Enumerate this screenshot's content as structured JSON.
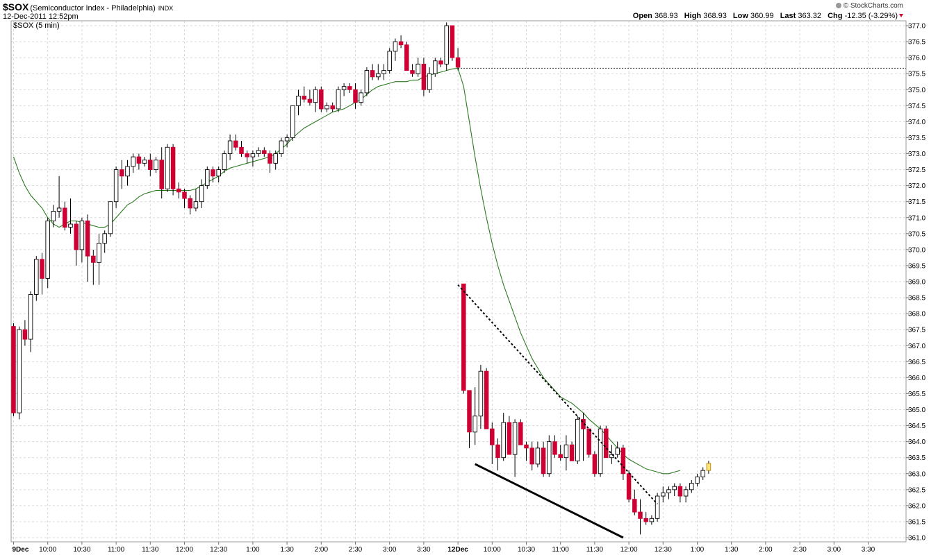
{
  "header": {
    "symbol": "$SOX",
    "description": "(Semiconductor Index - Philadelphia)",
    "exchange": "INDX",
    "datetime": "12-Dec-2011 12:52pm",
    "brand": "© StockCharts.com",
    "open_label": "Open",
    "open": "368.93",
    "high_label": "High",
    "high": "368.93",
    "low_label": "Low",
    "low": "360.99",
    "last_label": "Last",
    "last": "363.32",
    "chg_label": "Chg",
    "chg": "-12.35 (-3.29%)"
  },
  "colors": {
    "up": "#ffffff",
    "down": "#cc0033",
    "ma": "#2a7a1f",
    "grid": "#d9d9d9",
    "last_bar": "#ffe27a"
  },
  "chart_data": {
    "type": "candlestick",
    "series_label": "$SOX (5 min)",
    "ylim": [
      361.0,
      377.0
    ],
    "y_ticks": [
      "377.0",
      "376.5",
      "376.0",
      "375.5",
      "375.0",
      "374.5",
      "374.0",
      "373.5",
      "373.0",
      "372.5",
      "372.0",
      "371.5",
      "371.0",
      "370.5",
      "370.0",
      "369.5",
      "369.0",
      "368.5",
      "368.0",
      "367.5",
      "367.0",
      "366.5",
      "366.0",
      "365.5",
      "365.0",
      "364.5",
      "364.0",
      "363.5",
      "363.0",
      "362.5",
      "362.0",
      "361.5",
      "361.0"
    ],
    "x_labels": [
      {
        "bar": 0,
        "text": "9Dec",
        "bold": true
      },
      {
        "bar": 6,
        "text": "10:00"
      },
      {
        "bar": 12,
        "text": "10:30"
      },
      {
        "bar": 18,
        "text": "11:00"
      },
      {
        "bar": 24,
        "text": "11:30"
      },
      {
        "bar": 30,
        "text": "12:00"
      },
      {
        "bar": 36,
        "text": "12:30"
      },
      {
        "bar": 42,
        "text": "1:00"
      },
      {
        "bar": 48,
        "text": "1:30"
      },
      {
        "bar": 54,
        "text": "2:00"
      },
      {
        "bar": 60,
        "text": "2:30"
      },
      {
        "bar": 66,
        "text": "3:00"
      },
      {
        "bar": 72,
        "text": "3:30"
      },
      {
        "bar": 78,
        "text": "12Dec",
        "bold": true
      },
      {
        "bar": 84,
        "text": "10:00"
      },
      {
        "bar": 90,
        "text": "10:30"
      },
      {
        "bar": 96,
        "text": "11:00"
      },
      {
        "bar": 102,
        "text": "11:30"
      },
      {
        "bar": 108,
        "text": "12:00"
      },
      {
        "bar": 114,
        "text": "12:30"
      },
      {
        "bar": 120,
        "text": "1:00"
      },
      {
        "bar": 126,
        "text": "1:30"
      },
      {
        "bar": 132,
        "text": "2:00"
      },
      {
        "bar": 138,
        "text": "2:30"
      },
      {
        "bar": 144,
        "text": "3:00"
      },
      {
        "bar": 150,
        "text": "3:30"
      }
    ],
    "candles": [
      [
        367.6,
        367.7,
        364.8,
        364.9
      ],
      [
        364.9,
        367.6,
        364.7,
        367.5
      ],
      [
        367.5,
        367.8,
        367.0,
        367.2
      ],
      [
        367.2,
        368.7,
        366.8,
        368.6
      ],
      [
        368.6,
        369.8,
        368.4,
        369.7
      ],
      [
        369.7,
        369.9,
        368.6,
        369.1
      ],
      [
        369.1,
        371.0,
        368.8,
        370.9
      ],
      [
        370.9,
        371.4,
        370.7,
        371.2
      ],
      [
        371.2,
        372.3,
        371.0,
        371.3
      ],
      [
        371.3,
        371.5,
        370.6,
        370.7
      ],
      [
        370.7,
        371.6,
        370.5,
        370.8
      ],
      [
        370.8,
        370.9,
        369.5,
        370.0
      ],
      [
        370.0,
        371.0,
        369.6,
        370.9
      ],
      [
        370.9,
        371.1,
        369.0,
        369.8
      ],
      [
        369.8,
        370.0,
        368.9,
        369.6
      ],
      [
        369.6,
        370.5,
        368.9,
        370.2
      ],
      [
        370.2,
        370.6,
        369.9,
        370.5
      ],
      [
        370.5,
        371.5,
        370.4,
        371.5
      ],
      [
        371.5,
        372.6,
        371.3,
        372.5
      ],
      [
        372.5,
        372.8,
        371.9,
        372.3
      ],
      [
        372.3,
        372.8,
        372.0,
        372.6
      ],
      [
        372.6,
        373.0,
        372.4,
        372.9
      ],
      [
        372.9,
        373.0,
        372.5,
        372.7
      ],
      [
        372.7,
        372.9,
        372.6,
        372.8
      ],
      [
        372.8,
        373.0,
        372.3,
        372.5
      ],
      [
        372.5,
        372.9,
        372.4,
        372.8
      ],
      [
        372.8,
        373.2,
        371.6,
        371.9
      ],
      [
        371.9,
        373.3,
        371.8,
        373.2
      ],
      [
        373.2,
        373.3,
        371.7,
        371.9
      ],
      [
        371.9,
        372.1,
        371.6,
        371.8
      ],
      [
        371.8,
        371.9,
        371.3,
        371.6
      ],
      [
        371.6,
        371.7,
        371.1,
        371.3
      ],
      [
        371.3,
        371.9,
        371.2,
        371.5
      ],
      [
        371.5,
        372.2,
        371.3,
        372.0
      ],
      [
        372.0,
        372.6,
        371.9,
        372.5
      ],
      [
        372.5,
        372.6,
        372.1,
        372.3
      ],
      [
        372.3,
        372.6,
        372.1,
        372.5
      ],
      [
        372.5,
        373.1,
        372.4,
        373.0
      ],
      [
        373.0,
        373.6,
        372.8,
        373.4
      ],
      [
        373.4,
        373.6,
        373.1,
        373.2
      ],
      [
        373.2,
        373.4,
        372.9,
        373.0
      ],
      [
        373.0,
        373.1,
        372.7,
        372.9
      ],
      [
        372.9,
        373.1,
        372.6,
        373.0
      ],
      [
        373.0,
        373.2,
        372.9,
        373.1
      ],
      [
        373.1,
        373.2,
        372.9,
        373.0
      ],
      [
        373.0,
        373.1,
        372.4,
        372.7
      ],
      [
        372.7,
        373.1,
        372.5,
        373.0
      ],
      [
        373.0,
        373.5,
        372.9,
        373.4
      ],
      [
        373.4,
        373.6,
        373.2,
        373.5
      ],
      [
        373.5,
        374.5,
        373.4,
        374.5
      ],
      [
        374.5,
        375.0,
        374.2,
        374.8
      ],
      [
        374.8,
        375.1,
        374.6,
        374.7
      ],
      [
        374.7,
        375.0,
        374.5,
        374.6
      ],
      [
        374.6,
        375.1,
        374.3,
        375.0
      ],
      [
        375.0,
        375.1,
        374.3,
        374.4
      ],
      [
        374.4,
        374.6,
        374.3,
        374.5
      ],
      [
        374.5,
        374.6,
        374.3,
        374.4
      ],
      [
        374.4,
        375.1,
        374.3,
        375.0
      ],
      [
        375.0,
        375.2,
        374.8,
        375.1
      ],
      [
        375.1,
        375.2,
        374.9,
        375.0
      ],
      [
        375.0,
        375.2,
        374.4,
        374.6
      ],
      [
        374.6,
        375.0,
        374.5,
        374.9
      ],
      [
        374.9,
        375.7,
        374.8,
        375.6
      ],
      [
        375.6,
        375.8,
        375.3,
        375.4
      ],
      [
        375.4,
        375.8,
        375.3,
        375.5
      ],
      [
        375.5,
        375.8,
        375.3,
        375.6
      ],
      [
        375.6,
        376.3,
        375.5,
        376.2
      ],
      [
        376.2,
        376.6,
        375.9,
        376.5
      ],
      [
        376.5,
        376.7,
        376.3,
        376.4
      ],
      [
        376.4,
        376.5,
        375.6,
        375.6
      ],
      [
        375.6,
        375.8,
        375.4,
        375.5
      ],
      [
        375.5,
        376.0,
        375.4,
        375.8
      ],
      [
        375.8,
        376.0,
        374.8,
        375.0
      ],
      [
        375.0,
        375.7,
        374.9,
        375.5
      ],
      [
        375.5,
        376.0,
        375.4,
        375.9
      ],
      [
        375.9,
        376.0,
        375.7,
        375.8
      ],
      [
        375.8,
        377.1,
        375.6,
        377.0
      ],
      [
        377.0,
        377.0,
        375.9,
        376.0
      ],
      [
        376.0,
        376.3,
        375.6,
        375.7
      ],
      [
        368.93,
        368.93,
        365.5,
        365.6
      ],
      [
        365.6,
        365.6,
        363.8,
        364.3
      ],
      [
        364.3,
        365.7,
        363.9,
        364.8
      ],
      [
        364.8,
        366.4,
        364.4,
        366.2
      ],
      [
        366.2,
        366.3,
        364.4,
        364.4
      ],
      [
        364.4,
        364.6,
        363.3,
        363.9
      ],
      [
        363.9,
        364.1,
        363.1,
        363.5
      ],
      [
        363.5,
        364.9,
        363.4,
        364.6
      ],
      [
        364.6,
        364.8,
        363.6,
        363.6
      ],
      [
        363.6,
        364.7,
        362.9,
        364.6
      ],
      [
        364.6,
        364.7,
        363.9,
        363.9
      ],
      [
        363.9,
        364.0,
        363.4,
        363.8
      ],
      [
        363.8,
        364.0,
        363.1,
        363.3
      ],
      [
        363.3,
        364.0,
        363.2,
        363.8
      ],
      [
        363.8,
        364.0,
        362.9,
        363.0
      ],
      [
        363.0,
        364.2,
        362.9,
        364.0
      ],
      [
        364.0,
        364.2,
        363.5,
        363.6
      ],
      [
        363.6,
        363.9,
        363.4,
        363.5
      ],
      [
        363.5,
        364.2,
        363.1,
        363.9
      ],
      [
        363.9,
        364.0,
        363.4,
        363.4
      ],
      [
        363.4,
        364.8,
        363.3,
        364.7
      ],
      [
        364.7,
        364.9,
        363.4,
        364.4
      ],
      [
        364.4,
        364.4,
        363.5,
        363.6
      ],
      [
        363.6,
        363.7,
        362.9,
        363.0
      ],
      [
        363.0,
        364.5,
        362.9,
        364.4
      ],
      [
        364.4,
        364.5,
        363.5,
        363.5
      ],
      [
        363.5,
        363.9,
        363.3,
        363.6
      ],
      [
        363.6,
        364.0,
        363.5,
        363.8
      ],
      [
        363.8,
        363.9,
        362.8,
        363.0
      ],
      [
        363.0,
        363.1,
        362.1,
        362.2
      ],
      [
        362.2,
        362.5,
        361.7,
        361.8
      ],
      [
        361.8,
        362.2,
        361.1,
        361.6
      ],
      [
        361.6,
        361.8,
        361.4,
        361.5
      ],
      [
        361.5,
        361.7,
        361.4,
        361.6
      ],
      [
        361.6,
        362.4,
        361.5,
        362.3
      ],
      [
        362.3,
        362.6,
        362.1,
        362.4
      ],
      [
        362.4,
        362.6,
        362.2,
        362.5
      ],
      [
        362.5,
        362.7,
        362.3,
        362.6
      ],
      [
        362.6,
        362.7,
        362.1,
        362.3
      ],
      [
        362.3,
        362.6,
        362.1,
        362.5
      ],
      [
        362.5,
        362.8,
        362.4,
        362.7
      ],
      [
        362.7,
        363.0,
        362.6,
        362.9
      ],
      [
        362.9,
        363.2,
        362.8,
        363.1
      ],
      [
        363.1,
        363.4,
        363.0,
        363.32
      ]
    ],
    "moving_average": [
      372.9,
      372.4,
      372.0,
      371.7,
      371.5,
      371.3,
      371.0,
      370.8,
      370.7,
      370.8,
      370.9,
      370.9,
      370.85,
      370.8,
      370.75,
      370.7,
      370.7,
      370.8,
      371.0,
      371.2,
      371.4,
      371.5,
      371.65,
      371.75,
      371.8,
      371.85,
      371.85,
      371.85,
      371.85,
      371.85,
      371.85,
      371.85,
      371.9,
      372.0,
      372.1,
      372.2,
      372.3,
      372.45,
      372.55,
      372.6,
      372.65,
      372.7,
      372.75,
      372.8,
      372.85,
      372.9,
      373.0,
      373.15,
      373.3,
      373.5,
      373.65,
      373.8,
      373.9,
      374.0,
      374.1,
      374.2,
      374.3,
      374.35,
      374.4,
      374.5,
      374.6,
      374.7,
      374.85,
      375.0,
      375.1,
      375.15,
      375.2,
      375.25,
      375.25,
      375.25,
      375.3,
      375.3,
      375.4,
      375.45,
      375.5,
      375.55,
      375.6,
      375.65,
      375.67,
      375.1,
      374.0,
      372.9,
      371.9,
      371.0,
      370.2,
      369.5,
      368.9,
      368.4,
      367.9,
      367.4,
      367.0,
      366.6,
      366.3,
      366.0,
      365.8,
      365.6,
      365.4,
      365.3,
      365.2,
      365.05,
      364.9,
      364.7,
      364.55,
      364.4,
      364.2,
      364.0,
      363.8,
      363.6,
      363.45,
      363.35,
      363.25,
      363.15,
      363.1,
      363.05,
      363.0,
      363.0,
      363.05,
      363.1
    ],
    "prev_close": 375.67,
    "trendlines": [
      {
        "style": "dotted",
        "from": [
          78,
          368.9
        ],
        "to": [
          113,
          362.05
        ]
      },
      {
        "style": "solid",
        "from": [
          81,
          363.3
        ],
        "to": [
          107,
          361.0
        ]
      }
    ]
  }
}
